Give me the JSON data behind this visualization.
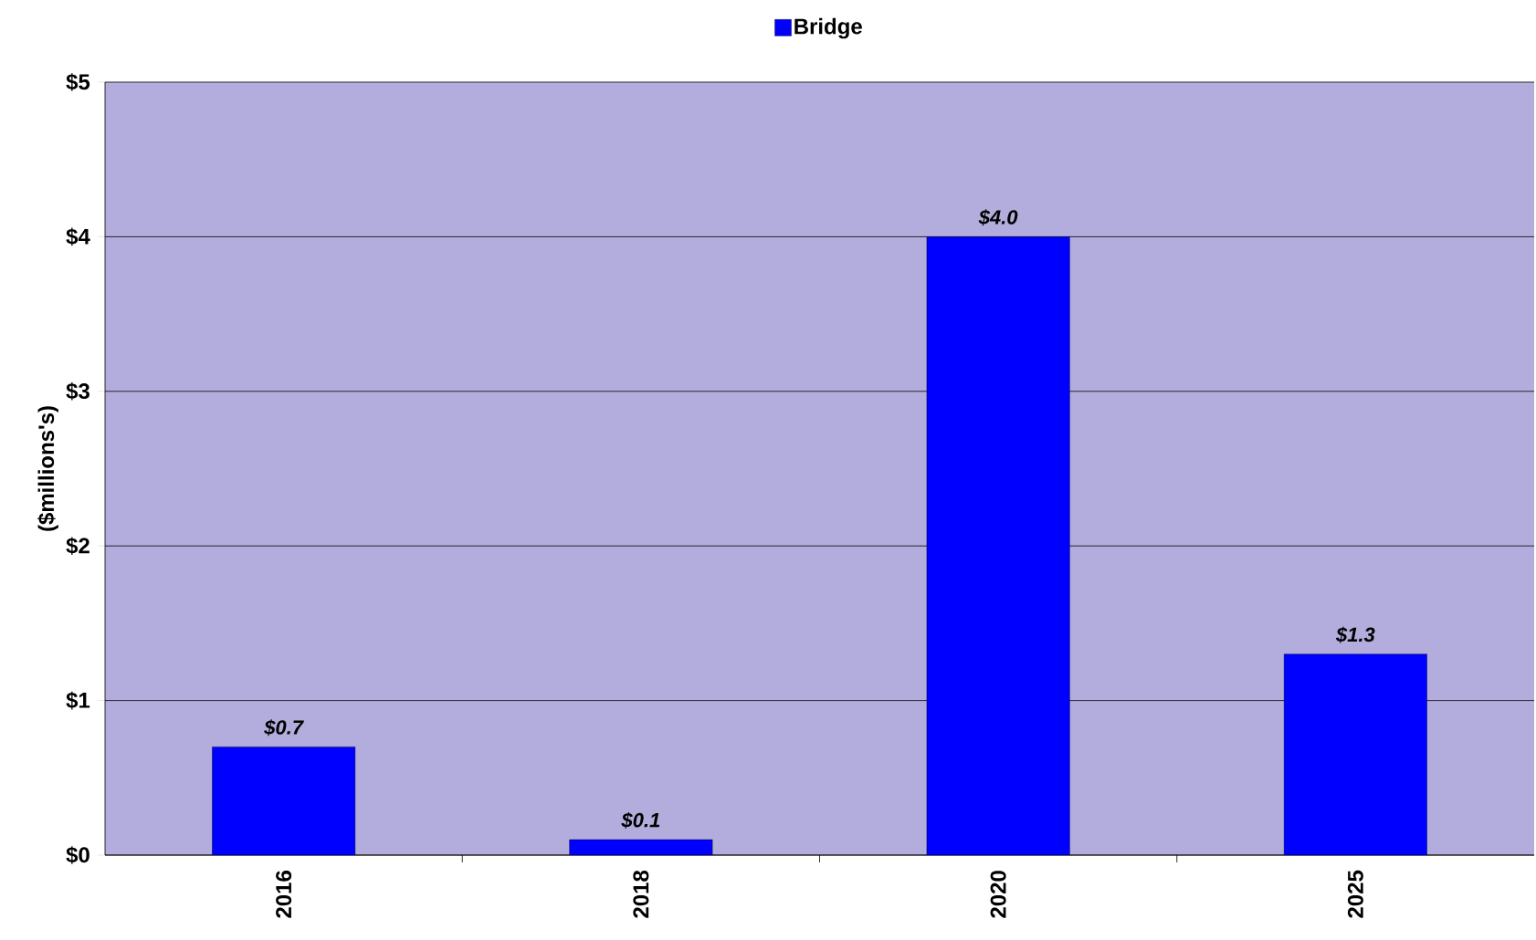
{
  "chart_data": {
    "type": "bar",
    "ylabel": "($millions's)",
    "categories": [
      "2016",
      "2018",
      "2020",
      "2025"
    ],
    "series": [
      {
        "name": "Bridge",
        "color": "#0000ff",
        "values": [
          0.7,
          0.1,
          4.0,
          1.3
        ],
        "value_labels": [
          "$0.7",
          "$0.1",
          "$4.0",
          "$1.3"
        ]
      }
    ],
    "ylim": [
      0,
      5
    ],
    "yticks": [
      {
        "value": 0,
        "label": "$0"
      },
      {
        "value": 1,
        "label": "$1"
      },
      {
        "value": 2,
        "label": "$2"
      },
      {
        "value": 3,
        "label": "$3"
      },
      {
        "value": 4,
        "label": "$4"
      },
      {
        "value": 5,
        "label": "$5"
      }
    ],
    "grid": "y",
    "legend": "top"
  }
}
